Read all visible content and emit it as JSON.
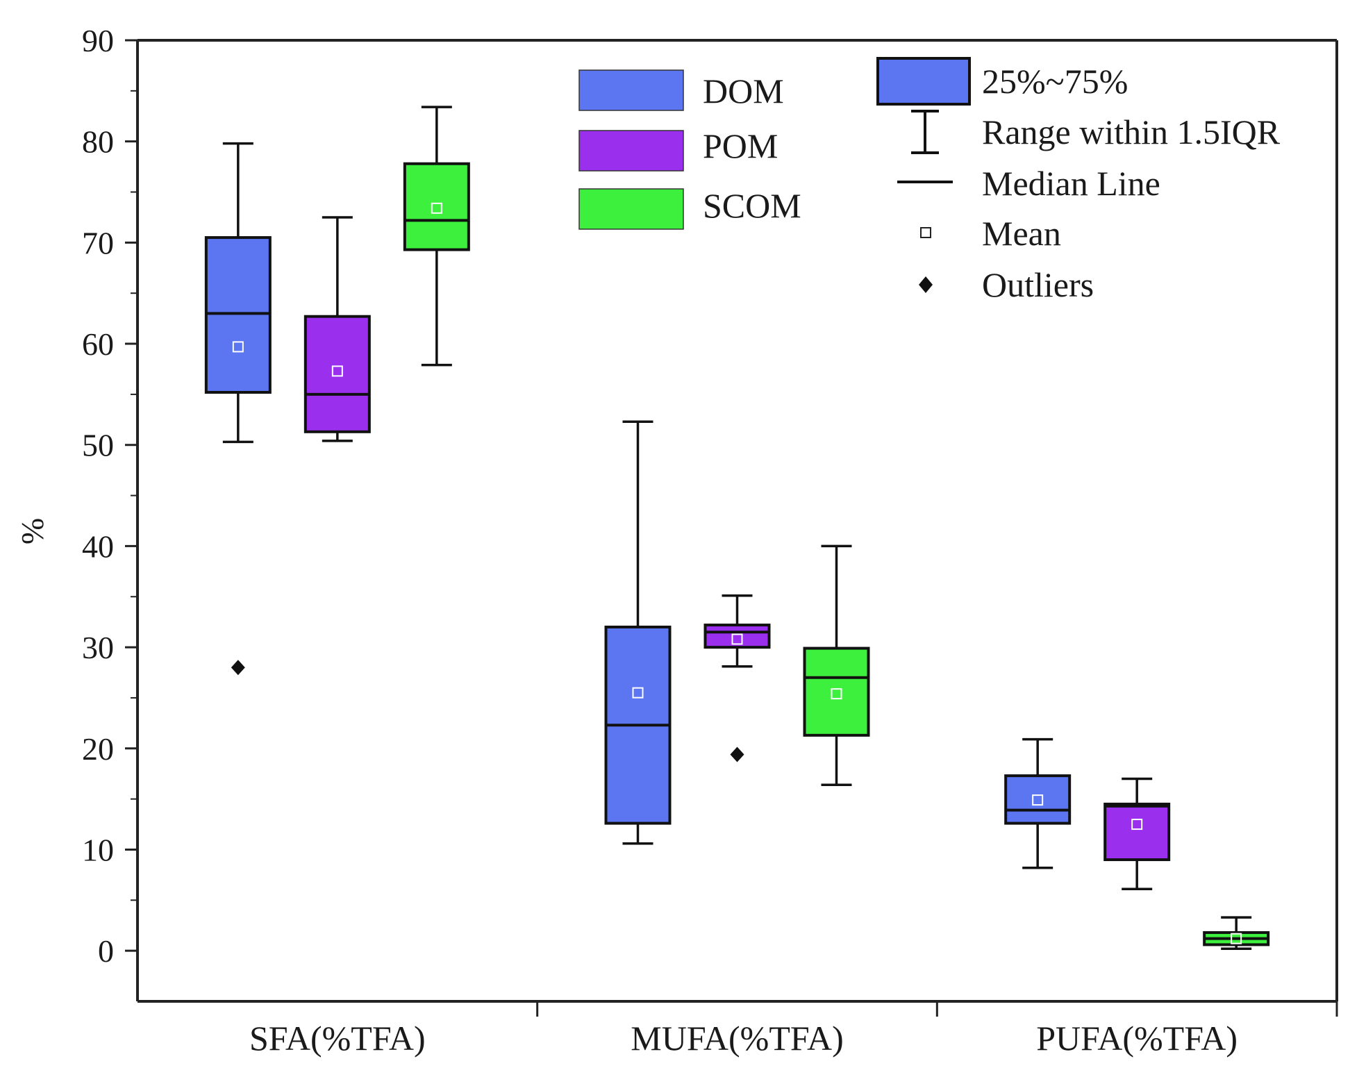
{
  "chart_data": {
    "type": "box",
    "title": "",
    "xlabel": "",
    "ylabel": "%",
    "ylim": [
      -5,
      90
    ],
    "yticks": [
      0,
      10,
      20,
      30,
      40,
      50,
      60,
      70,
      80,
      90
    ],
    "categories": [
      "SFA(%TFA)",
      "MUFA(%TFA)",
      "PUFA(%TFA)"
    ],
    "series": [
      {
        "name": "DOM",
        "color": "#5b76f0",
        "boxes": [
          {
            "category": "SFA(%TFA)",
            "q1": 55.2,
            "median": 63.0,
            "q3": 70.5,
            "whisker_low": 50.3,
            "whisker_high": 79.8,
            "mean": 59.7,
            "outliers": [
              28.0
            ]
          },
          {
            "category": "MUFA(%TFA)",
            "q1": 12.6,
            "median": 22.3,
            "q3": 32.0,
            "whisker_low": 10.6,
            "whisker_high": 52.3,
            "mean": 25.5,
            "outliers": []
          },
          {
            "category": "PUFA(%TFA)",
            "q1": 12.6,
            "median": 13.9,
            "q3": 17.3,
            "whisker_low": 8.2,
            "whisker_high": 20.9,
            "mean": 14.9,
            "outliers": []
          }
        ]
      },
      {
        "name": "POM",
        "color": "#9a30ee",
        "boxes": [
          {
            "category": "SFA(%TFA)",
            "q1": 51.3,
            "median": 55.0,
            "q3": 62.7,
            "whisker_low": 50.4,
            "whisker_high": 72.5,
            "mean": 57.3,
            "outliers": []
          },
          {
            "category": "MUFA(%TFA)",
            "q1": 30.0,
            "median": 31.5,
            "q3": 32.2,
            "whisker_low": 28.1,
            "whisker_high": 35.1,
            "mean": 30.8,
            "outliers": [
              19.4
            ]
          },
          {
            "category": "PUFA(%TFA)",
            "q1": 9.0,
            "median": 14.3,
            "q3": 14.5,
            "whisker_low": 6.1,
            "whisker_high": 17.0,
            "mean": 12.5,
            "outliers": []
          }
        ]
      },
      {
        "name": "SCOM",
        "color": "#3ef03e",
        "boxes": [
          {
            "category": "SFA(%TFA)",
            "q1": 69.3,
            "median": 72.2,
            "q3": 77.8,
            "whisker_low": 57.9,
            "whisker_high": 83.4,
            "mean": 73.4,
            "outliers": []
          },
          {
            "category": "MUFA(%TFA)",
            "q1": 21.3,
            "median": 27.0,
            "q3": 29.9,
            "whisker_low": 16.4,
            "whisker_high": 40.0,
            "mean": 25.4,
            "outliers": []
          },
          {
            "category": "PUFA(%TFA)",
            "q1": 0.6,
            "median": 1.2,
            "q3": 1.8,
            "whisker_low": 0.2,
            "whisker_high": 3.3,
            "mean": 1.2,
            "outliers": []
          }
        ]
      }
    ],
    "legend_groups": [
      "DOM",
      "POM",
      "SCOM"
    ],
    "legend_key": {
      "box": "25%~75%",
      "range": "Range within 1.5IQR",
      "median": "Median Line",
      "mean": "Mean",
      "outliers": "Outliers"
    },
    "legend_position": "top-right",
    "grid": false
  }
}
